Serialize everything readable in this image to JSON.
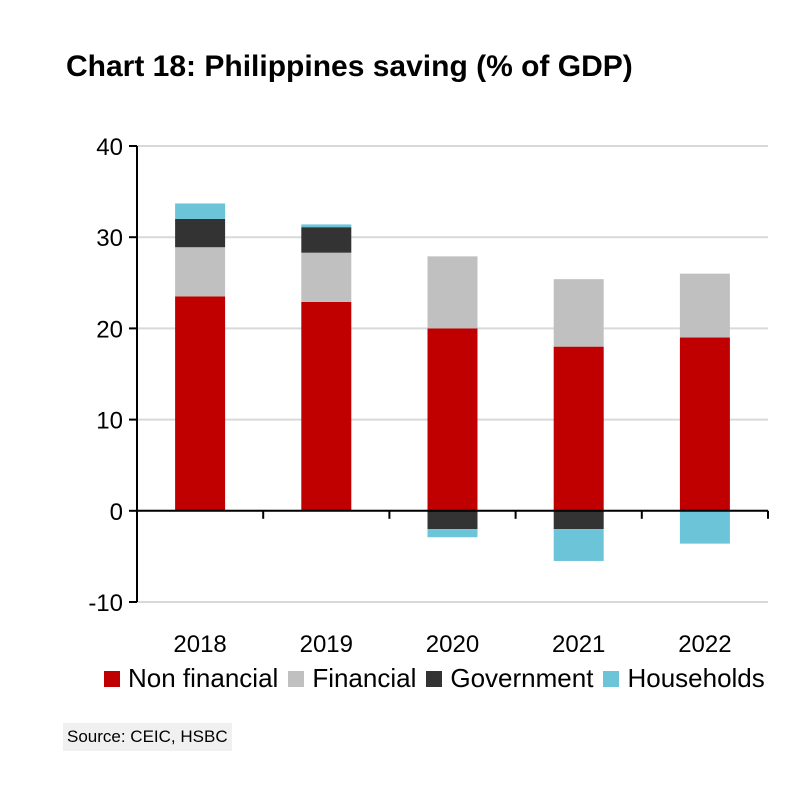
{
  "title": "Chart 18: Philippines saving (% of GDP)",
  "source": "Source: CEIC, HSBC",
  "chart_data": {
    "type": "bar",
    "stacked": true,
    "title": "Chart 18: Philippines saving (% of GDP)",
    "categories": [
      "2018",
      "2019",
      "2020",
      "2021",
      "2022"
    ],
    "ylim": [
      -10,
      40
    ],
    "yticks": [
      -10,
      0,
      10,
      20,
      30,
      40
    ],
    "grid": true,
    "legend_position": "bottom",
    "series": [
      {
        "name": "Non financial",
        "color": "#c00000",
        "values": [
          23.5,
          22.9,
          20.0,
          18.0,
          19.0
        ]
      },
      {
        "name": "Financial",
        "color": "#c0c0c0",
        "values": [
          5.4,
          5.4,
          7.9,
          7.4,
          7.0
        ]
      },
      {
        "name": "Government",
        "color": "#333333",
        "values": [
          3.1,
          2.8,
          -2.0,
          -2.0,
          0.0
        ]
      },
      {
        "name": "Households",
        "color": "#6cc4d8",
        "values": [
          1.7,
          0.3,
          -0.9,
          -3.5,
          -3.6
        ]
      }
    ]
  }
}
